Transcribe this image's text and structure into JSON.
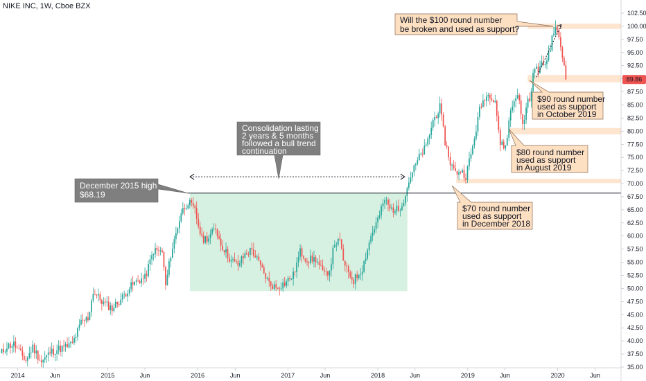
{
  "header": {
    "ticker_label": "NIKE INC, 1W, Cboe BZX"
  },
  "colors": {
    "up": "#26a69a",
    "down": "#ef5350",
    "current_price_badge": "#ef5350",
    "support_band": "#fde5cf",
    "consolidation_zone": "#d6f0e1",
    "grey_note": "#7f7f7f",
    "orange_note": "#fddfc2",
    "resistance_line": "#131722"
  },
  "chart_data": {
    "type": "candlestick",
    "y_axis": {
      "ticks": [
        "35.00",
        "37.50",
        "40.00",
        "42.50",
        "45.00",
        "47.50",
        "50.00",
        "52.50",
        "55.00",
        "57.50",
        "60.00",
        "62.50",
        "65.00",
        "67.50",
        "70.00",
        "72.50",
        "75.00",
        "77.50",
        "80.00",
        "82.50",
        "85.00",
        "87.50",
        "90.00",
        "92.50",
        "95.00",
        "97.50",
        "100.00",
        "102.50"
      ],
      "range": [
        34.4,
        103.5
      ]
    },
    "x_axis": {
      "ticks": [
        "2014",
        "Jun",
        "2015",
        "Jun",
        "2016",
        "Jun",
        "2017",
        "Jun",
        "2018",
        "Jun",
        "2019",
        "Jun",
        "2020",
        "Jun"
      ],
      "range": [
        "2013-10-21",
        "2020-09-14"
      ]
    },
    "current_price": {
      "label": "89.86",
      "value": 89.86
    },
    "horizontal_line": {
      "name": "December 2015 high",
      "value": 68.19
    },
    "support_bands": [
      {
        "y0": 99.5,
        "y1": 100.5,
        "x0": "2019-09-01",
        "x1": "2020-09-14"
      },
      {
        "y0": 89.3,
        "y1": 90.7,
        "x0": "2019-09-01",
        "x1": "2020-09-14"
      },
      {
        "y0": 79.4,
        "y1": 80.6,
        "x0": "2019-06-15",
        "x1": "2020-09-14"
      },
      {
        "y0": 70.1,
        "y1": 70.9,
        "x0": "2018-11-15",
        "x1": "2020-09-14"
      }
    ],
    "consolidation_zone": {
      "x0": "2015-12-01",
      "x1": "2018-05-01",
      "y0": 49.5,
      "y1": 68.19
    },
    "range_arrow": {
      "x0": "2015-12-01",
      "x1": "2018-04-20",
      "y": 71.3
    },
    "target_arrow": {
      "x0": "2019-10-07",
      "y0": 90.3,
      "x1": "2020-01-15",
      "y1": 100.3
    },
    "keypoints": [
      {
        "date": "2013-10-21",
        "close": 37.4
      },
      {
        "date": "2013-11-18",
        "close": 39.0
      },
      {
        "date": "2013-12-16",
        "close": 39.4
      },
      {
        "date": "2014-01-13",
        "close": 37.5
      },
      {
        "date": "2014-02-03",
        "close": 36.3
      },
      {
        "date": "2014-03-03",
        "close": 38.8
      },
      {
        "date": "2014-04-07",
        "close": 36.0
      },
      {
        "date": "2014-05-12",
        "close": 37.8
      },
      {
        "date": "2014-06-16",
        "close": 38.5
      },
      {
        "date": "2014-07-14",
        "close": 38.8
      },
      {
        "date": "2014-08-11",
        "close": 39.5
      },
      {
        "date": "2014-09-15",
        "close": 43.5
      },
      {
        "date": "2014-10-13",
        "close": 44.3
      },
      {
        "date": "2014-11-03",
        "close": 49.4
      },
      {
        "date": "2014-12-15",
        "close": 47.2
      },
      {
        "date": "2015-01-19",
        "close": 46.2
      },
      {
        "date": "2015-03-02",
        "close": 48.3
      },
      {
        "date": "2015-03-30",
        "close": 50.2
      },
      {
        "date": "2015-05-04",
        "close": 51.5
      },
      {
        "date": "2015-06-01",
        "close": 52.0
      },
      {
        "date": "2015-07-06",
        "close": 57.2
      },
      {
        "date": "2015-08-10",
        "close": 57.0
      },
      {
        "date": "2015-08-24",
        "close": 50.5
      },
      {
        "date": "2015-09-14",
        "close": 56.5
      },
      {
        "date": "2015-10-26",
        "close": 64.5
      },
      {
        "date": "2015-11-23",
        "close": 66.5
      },
      {
        "date": "2015-12-21",
        "close": 64.8
      },
      {
        "date": "2016-01-18",
        "close": 59.3
      },
      {
        "date": "2016-02-15",
        "close": 59.8
      },
      {
        "date": "2016-03-14",
        "close": 61.5
      },
      {
        "date": "2016-04-04",
        "close": 58.5
      },
      {
        "date": "2016-05-16",
        "close": 55.3
      },
      {
        "date": "2016-06-13",
        "close": 54.5
      },
      {
        "date": "2016-07-11",
        "close": 56.5
      },
      {
        "date": "2016-08-08",
        "close": 57.4
      },
      {
        "date": "2016-09-12",
        "close": 54.2
      },
      {
        "date": "2016-10-17",
        "close": 51.0
      },
      {
        "date": "2016-11-14",
        "close": 50.2
      },
      {
        "date": "2016-12-19",
        "close": 51.0
      },
      {
        "date": "2017-01-23",
        "close": 52.5
      },
      {
        "date": "2017-02-20",
        "close": 57.0
      },
      {
        "date": "2017-03-20",
        "close": 55.5
      },
      {
        "date": "2017-04-24",
        "close": 55.6
      },
      {
        "date": "2017-05-29",
        "close": 52.5
      },
      {
        "date": "2017-06-19",
        "close": 53.6
      },
      {
        "date": "2017-07-10",
        "close": 58.8
      },
      {
        "date": "2017-07-31",
        "close": 58.8
      },
      {
        "date": "2017-08-21",
        "close": 54.0
      },
      {
        "date": "2017-09-25",
        "close": 51.5
      },
      {
        "date": "2017-10-30",
        "close": 53.8
      },
      {
        "date": "2017-12-04",
        "close": 60.0
      },
      {
        "date": "2018-01-08",
        "close": 64.0
      },
      {
        "date": "2018-01-29",
        "close": 67.0
      },
      {
        "date": "2018-02-19",
        "close": 65.2
      },
      {
        "date": "2018-03-26",
        "close": 65.0
      },
      {
        "date": "2018-04-16",
        "close": 67.0
      },
      {
        "date": "2018-05-14",
        "close": 71.5
      },
      {
        "date": "2018-06-18",
        "close": 75.0
      },
      {
        "date": "2018-07-16",
        "close": 77.0
      },
      {
        "date": "2018-08-13",
        "close": 82.0
      },
      {
        "date": "2018-09-10",
        "close": 84.5
      },
      {
        "date": "2018-10-01",
        "close": 78.0
      },
      {
        "date": "2018-10-22",
        "close": 74.0
      },
      {
        "date": "2018-11-12",
        "close": 72.0
      },
      {
        "date": "2018-12-03",
        "close": 72.5
      },
      {
        "date": "2018-12-24",
        "close": 71.5
      },
      {
        "date": "2019-01-21",
        "close": 77.0
      },
      {
        "date": "2019-02-18",
        "close": 84.0
      },
      {
        "date": "2019-03-11",
        "close": 86.5
      },
      {
        "date": "2019-04-01",
        "close": 87.0
      },
      {
        "date": "2019-04-22",
        "close": 86.0
      },
      {
        "date": "2019-05-13",
        "close": 77.5
      },
      {
        "date": "2019-06-03",
        "close": 77.0
      },
      {
        "date": "2019-06-24",
        "close": 84.0
      },
      {
        "date": "2019-07-22",
        "close": 87.5
      },
      {
        "date": "2019-08-12",
        "close": 81.0
      },
      {
        "date": "2019-09-02",
        "close": 86.0
      },
      {
        "date": "2019-09-16",
        "close": 87.0
      },
      {
        "date": "2019-09-23",
        "close": 91.5
      },
      {
        "date": "2019-10-14",
        "close": 91.8
      },
      {
        "date": "2019-11-18",
        "close": 93.5
      },
      {
        "date": "2019-12-23",
        "close": 100.2
      },
      {
        "date": "2020-01-13",
        "close": 96.0
      },
      {
        "date": "2020-01-27",
        "close": 92.5
      },
      {
        "date": "2020-02-03",
        "close": 89.86
      }
    ]
  },
  "annotations": {
    "dec_high": {
      "line1": "December 2015 high",
      "line2": "$68.19"
    },
    "consolidation": {
      "line1": "Consolidation lasting",
      "line2": "2 years & 5 months",
      "line3": "followed a bull trend",
      "line4": "continuation"
    },
    "round100": {
      "line1": "Will the $100 round number",
      "line2": "be broken and used as support?"
    },
    "round90": {
      "line1": "$90 round number",
      "line2": "used as support",
      "line3": "in October 2019"
    },
    "round80": {
      "line1": "$80 round number",
      "line2": "used as support",
      "line3": "in August 2019"
    },
    "round70": {
      "line1": "$70 round number",
      "line2": "used as support",
      "line3": "in December 2018"
    }
  }
}
